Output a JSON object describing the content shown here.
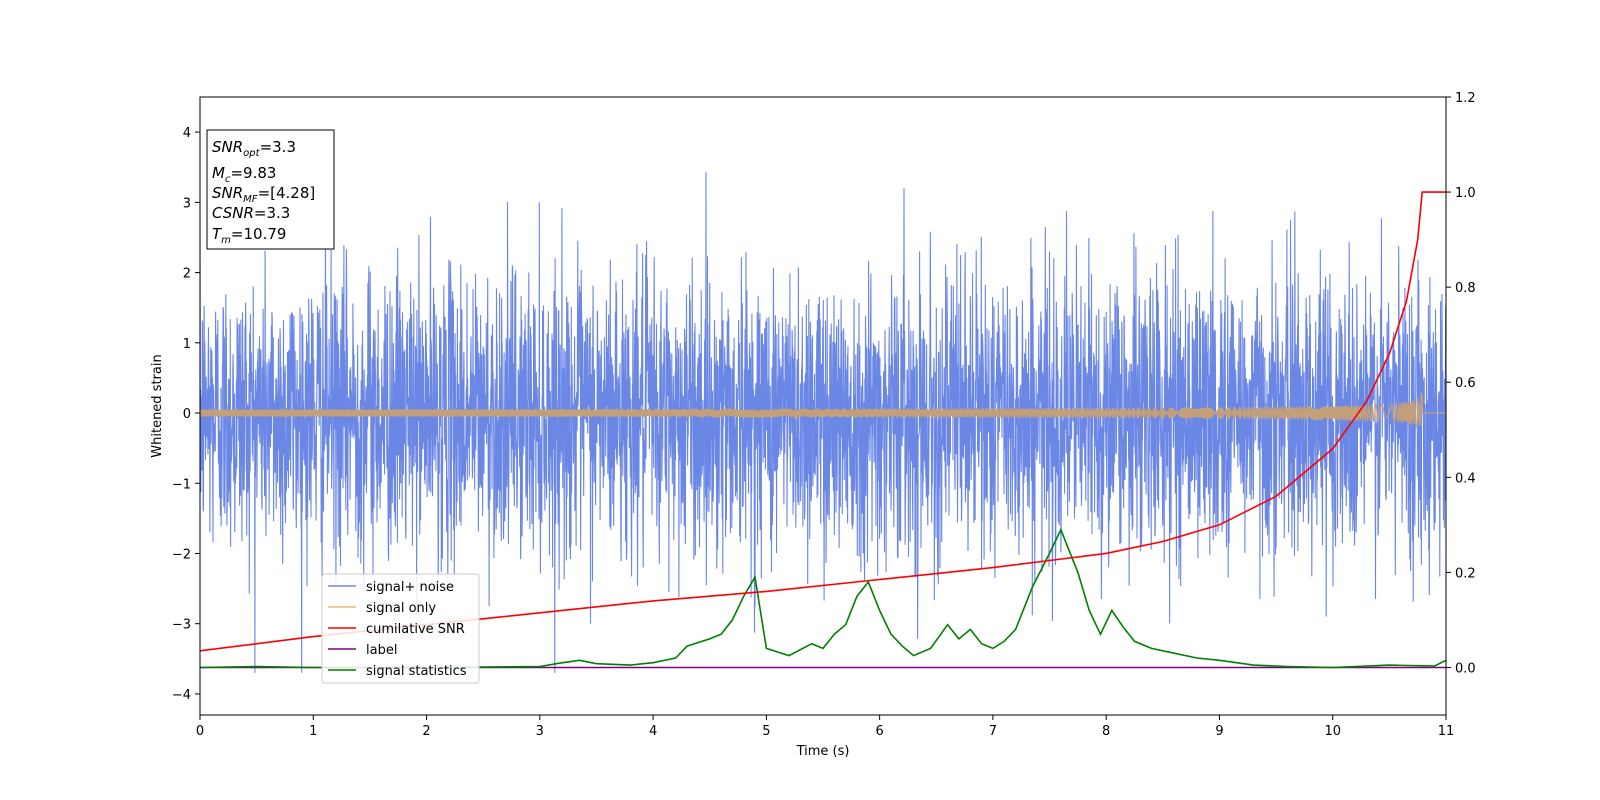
{
  "chart_data": {
    "type": "line",
    "xlabel": "Time (s)",
    "ylabel": "Whitened strain",
    "xlim": [
      0,
      11
    ],
    "ylim_left": [
      -4.3,
      4.5
    ],
    "ylim_right": [
      -0.1,
      1.2
    ],
    "x_ticks": [
      "0",
      "1",
      "2",
      "3",
      "4",
      "5",
      "6",
      "7",
      "8",
      "9",
      "10",
      "11"
    ],
    "y_ticks_left": [
      "−4",
      "−3",
      "−2",
      "−1",
      "0",
      "1",
      "2",
      "3",
      "4"
    ],
    "y_ticks_right": [
      "0.0",
      "0.2",
      "0.4",
      "0.6",
      "0.8",
      "1.0",
      "1.2"
    ],
    "grid": false,
    "legend_position": "lower-left",
    "info_box": {
      "snr_opt": "=3.3",
      "mc": "=9.83",
      "snr_mf": "=[4.28]",
      "csnr": "=3.3",
      "tm": "=10.79"
    },
    "series": [
      {
        "name": "signal+ noise",
        "axis": "left",
        "color": "#6b87e6",
        "kind": "noise",
        "amplitude_std": 1.0,
        "x_range": [
          0,
          11
        ]
      },
      {
        "name": "signal only",
        "axis": "left",
        "color": "#e6bc7a",
        "kind": "chirp",
        "peak_amplitude": 0.38,
        "merger_time": 10.79
      },
      {
        "name": "cumilative SNR",
        "axis": "right",
        "color": "#ff0000",
        "x": [
          0,
          1,
          2,
          3,
          4,
          5,
          6,
          7,
          7.5,
          8,
          8.5,
          9,
          9.5,
          10,
          10.3,
          10.5,
          10.65,
          10.75,
          10.79,
          11
        ],
        "y": [
          0.035,
          0.065,
          0.09,
          0.115,
          0.14,
          0.16,
          0.185,
          0.21,
          0.225,
          0.24,
          0.265,
          0.3,
          0.36,
          0.46,
          0.56,
          0.66,
          0.77,
          0.9,
          1.0,
          1.0
        ]
      },
      {
        "name": "label",
        "axis": "right",
        "color": "#800080",
        "x": [
          0,
          11
        ],
        "y": [
          0,
          0
        ]
      },
      {
        "name": "signal statistics",
        "axis": "right",
        "color": "#008000",
        "x": [
          0,
          0.5,
          1,
          2,
          3,
          3.2,
          3.35,
          3.5,
          3.8,
          4,
          4.2,
          4.3,
          4.5,
          4.6,
          4.7,
          4.8,
          4.9,
          5.0,
          5.2,
          5.4,
          5.5,
          5.6,
          5.7,
          5.8,
          5.9,
          6.0,
          6.1,
          6.2,
          6.3,
          6.45,
          6.6,
          6.7,
          6.8,
          6.9,
          7.0,
          7.1,
          7.2,
          7.35,
          7.5,
          7.6,
          7.65,
          7.75,
          7.85,
          7.95,
          8.05,
          8.15,
          8.25,
          8.4,
          8.6,
          8.8,
          9.0,
          9.3,
          9.6,
          10.0,
          10.5,
          10.9,
          11
        ],
        "y": [
          0.0,
          0.002,
          0.0,
          0.0,
          0.002,
          0.01,
          0.015,
          0.008,
          0.005,
          0.01,
          0.02,
          0.045,
          0.06,
          0.07,
          0.1,
          0.15,
          0.19,
          0.04,
          0.025,
          0.05,
          0.04,
          0.07,
          0.09,
          0.15,
          0.18,
          0.12,
          0.07,
          0.045,
          0.025,
          0.04,
          0.09,
          0.06,
          0.08,
          0.05,
          0.04,
          0.055,
          0.08,
          0.17,
          0.24,
          0.29,
          0.26,
          0.2,
          0.12,
          0.07,
          0.12,
          0.085,
          0.055,
          0.04,
          0.03,
          0.02,
          0.015,
          0.005,
          0.002,
          0.0,
          0.005,
          0.003,
          0.015
        ]
      }
    ]
  }
}
